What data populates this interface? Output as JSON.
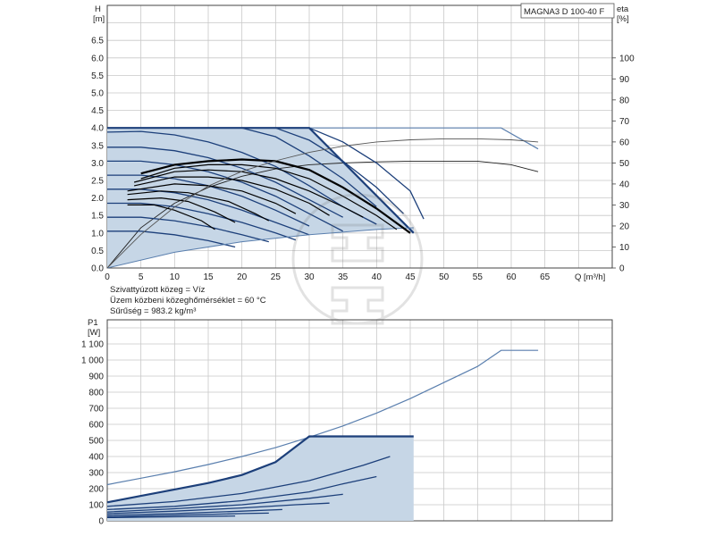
{
  "title_box": "MAGNA3 D 100-40 F",
  "info_lines": [
    "Szivattyúzott közeg = Víz",
    "Üzem közbeni közeghőmérséklet = 60 °C",
    "Sűrűség = 983.2 kg/m³"
  ],
  "colors": {
    "curve_dark": "#1c3f7a",
    "area_fill": "#c6d6e6",
    "curve_light": "#5a7fae",
    "eta_curve": "#000000",
    "grid": "#c8c8c8"
  },
  "chart_data": [
    {
      "type": "line",
      "name": "head",
      "x_label": "Q [m³/h]",
      "y_label_top": "H",
      "y_label_unit": "[m]",
      "y2_label_top": "eta",
      "y2_label_unit": "[%]",
      "x_ticks": [
        "0",
        "5",
        "10",
        "15",
        "20",
        "25",
        "30",
        "35",
        "40",
        "45",
        "50",
        "55",
        "60",
        "65"
      ],
      "y_ticks": [
        "0.0",
        "0.5",
        "1.0",
        "1.5",
        "2.0",
        "2.5",
        "3.0",
        "3.5",
        "4.0",
        "4.5",
        "5.0",
        "5.5",
        "6.0",
        "6.5"
      ],
      "y2_ticks": [
        "0",
        "10",
        "20",
        "30",
        "40",
        "50",
        "60",
        "70",
        "80",
        "90",
        "100"
      ],
      "xlim": [
        0,
        75
      ],
      "ylim": [
        0,
        7.5
      ],
      "y2lim": [
        0,
        125
      ],
      "max_curve": [
        [
          0,
          4.0
        ],
        [
          30,
          4.0
        ],
        [
          45.5,
          1.0
        ]
      ],
      "min_curve": [
        [
          0,
          0.0
        ],
        [
          10,
          0.45
        ],
        [
          20,
          0.75
        ],
        [
          30,
          0.95
        ],
        [
          40,
          1.1
        ],
        [
          45.5,
          1.15
        ]
      ],
      "speed_curves": [
        {
          "points": [
            [
              0,
              3.88
            ],
            [
              5,
              3.9
            ],
            [
              10,
              3.8
            ],
            [
              15,
              3.6
            ],
            [
              20,
              3.3
            ],
            [
              25,
              2.9
            ],
            [
              30,
              2.35
            ],
            [
              35,
              1.75
            ],
            [
              40,
              1.25
            ]
          ]
        },
        {
          "points": [
            [
              0,
              3.45
            ],
            [
              5,
              3.45
            ],
            [
              10,
              3.35
            ],
            [
              15,
              3.15
            ],
            [
              20,
              2.85
            ],
            [
              25,
              2.45
            ],
            [
              30,
              1.95
            ],
            [
              35,
              1.45
            ]
          ]
        },
        {
          "points": [
            [
              0,
              3.05
            ],
            [
              5,
              3.05
            ],
            [
              10,
              2.95
            ],
            [
              15,
              2.75
            ],
            [
              20,
              2.45
            ],
            [
              25,
              2.05
            ],
            [
              30,
              1.55
            ],
            [
              35,
              1.05
            ]
          ]
        },
        {
          "points": [
            [
              0,
              2.65
            ],
            [
              5,
              2.65
            ],
            [
              10,
              2.55
            ],
            [
              15,
              2.35
            ],
            [
              20,
              2.05
            ],
            [
              25,
              1.65
            ],
            [
              30,
              1.2
            ]
          ]
        },
        {
          "points": [
            [
              0,
              2.25
            ],
            [
              5,
              2.25
            ],
            [
              10,
              2.15
            ],
            [
              15,
              1.95
            ],
            [
              20,
              1.65
            ],
            [
              25,
              1.3
            ],
            [
              30,
              0.95
            ]
          ]
        },
        {
          "points": [
            [
              0,
              1.85
            ],
            [
              5,
              1.85
            ],
            [
              10,
              1.75
            ],
            [
              15,
              1.55
            ],
            [
              20,
              1.3
            ],
            [
              25,
              1.0
            ],
            [
              28,
              0.8
            ]
          ]
        },
        {
          "points": [
            [
              0,
              1.45
            ],
            [
              5,
              1.45
            ],
            [
              10,
              1.35
            ],
            [
              15,
              1.18
            ],
            [
              20,
              0.95
            ],
            [
              24,
              0.75
            ]
          ]
        },
        {
          "points": [
            [
              0,
              1.05
            ],
            [
              5,
              1.05
            ],
            [
              10,
              0.95
            ],
            [
              15,
              0.78
            ],
            [
              19,
              0.6
            ]
          ]
        }
      ],
      "mid_curves": [
        {
          "points": [
            [
              30,
              4.0
            ],
            [
              35,
              3.6
            ],
            [
              40,
              3.0
            ],
            [
              45,
              2.2
            ],
            [
              47,
              1.4
            ]
          ]
        },
        {
          "points": [
            [
              25,
              4.0
            ],
            [
              30,
              3.65
            ],
            [
              35,
              3.05
            ],
            [
              40,
              2.3
            ],
            [
              44,
              1.55
            ]
          ]
        },
        {
          "points": [
            [
              20,
              4.0
            ],
            [
              25,
              3.75
            ],
            [
              30,
              3.2
            ],
            [
              35,
              2.55
            ],
            [
              40,
              1.75
            ]
          ]
        }
      ],
      "constant_curves": [
        {
          "points": [
            [
              5,
              2.7
            ],
            [
              10,
              2.95
            ],
            [
              15,
              3.05
            ],
            [
              20,
              3.1
            ],
            [
              25,
              3.05
            ],
            [
              30,
              2.8
            ],
            [
              35,
              2.3
            ],
            [
              40,
              1.7
            ],
            [
              45,
              1.0
            ]
          ]
        },
        {
          "points": [
            [
              5,
              2.55
            ],
            [
              10,
              2.85
            ],
            [
              15,
              2.95
            ],
            [
              20,
              2.95
            ],
            [
              25,
              2.85
            ],
            [
              30,
              2.55
            ],
            [
              35,
              2.05
            ],
            [
              40,
              1.5
            ],
            [
              43,
              1.1
            ]
          ]
        },
        {
          "points": [
            [
              4,
              2.45
            ],
            [
              10,
              2.75
            ],
            [
              15,
              2.8
            ],
            [
              20,
              2.75
            ],
            [
              25,
              2.55
            ],
            [
              30,
              2.2
            ],
            [
              35,
              1.75
            ],
            [
              38,
              1.45
            ]
          ]
        },
        {
          "points": [
            [
              4,
              2.35
            ],
            [
              10,
              2.6
            ],
            [
              15,
              2.6
            ],
            [
              20,
              2.5
            ],
            [
              25,
              2.25
            ],
            [
              30,
              1.85
            ],
            [
              33,
              1.5
            ]
          ]
        },
        {
          "points": [
            [
              3,
              2.2
            ],
            [
              10,
              2.4
            ],
            [
              15,
              2.35
            ],
            [
              20,
              2.2
            ],
            [
              25,
              1.85
            ],
            [
              28,
              1.55
            ]
          ]
        },
        {
          "points": [
            [
              3,
              2.1
            ],
            [
              8,
              2.2
            ],
            [
              12,
              2.15
            ],
            [
              18,
              1.9
            ],
            [
              22,
              1.55
            ],
            [
              24,
              1.35
            ]
          ]
        },
        {
          "points": [
            [
              3,
              1.95
            ],
            [
              8,
              2.0
            ],
            [
              12,
              1.9
            ],
            [
              16,
              1.6
            ],
            [
              19,
              1.3
            ]
          ]
        },
        {
          "points": [
            [
              3,
              1.8
            ],
            [
              7,
              1.8
            ],
            [
              10,
              1.65
            ],
            [
              14,
              1.35
            ],
            [
              16,
              1.1
            ]
          ]
        }
      ],
      "eta_curve": [
        [
          0,
          0
        ],
        [
          5,
          16
        ],
        [
          10,
          29
        ],
        [
          15,
          39
        ],
        [
          20,
          46
        ],
        [
          25,
          51
        ],
        [
          30,
          55
        ],
        [
          35,
          58
        ],
        [
          40,
          60
        ],
        [
          45,
          61
        ],
        [
          50,
          61.5
        ],
        [
          55,
          61.5
        ],
        [
          60,
          61
        ],
        [
          64,
          60
        ]
      ],
      "far_curve": [
        [
          0,
          0
        ],
        [
          5,
          1.15
        ],
        [
          10,
          1.85
        ],
        [
          15,
          2.3
        ],
        [
          20,
          2.62
        ],
        [
          25,
          2.83
        ],
        [
          30,
          2.95
        ],
        [
          35,
          3.0
        ],
        [
          40,
          3.03
        ],
        [
          45,
          3.05
        ],
        [
          50,
          3.05
        ],
        [
          55,
          3.05
        ],
        [
          60,
          2.95
        ],
        [
          64,
          2.75
        ]
      ],
      "max_outline": [
        [
          30,
          4.0
        ],
        [
          58.5,
          4.0
        ],
        [
          64,
          3.4
        ]
      ]
    },
    {
      "type": "line",
      "name": "power",
      "y_label_top": "P1",
      "y_label_unit": "[W]",
      "x_ticks": [],
      "y_ticks": [
        "0",
        "100",
        "200",
        "300",
        "400",
        "500",
        "600",
        "700",
        "800",
        "900",
        "1 000",
        "1 100"
      ],
      "xlim": [
        0,
        75
      ],
      "ylim": [
        0,
        1250
      ],
      "max_power": [
        [
          0,
          115
        ],
        [
          5,
          155
        ],
        [
          10,
          195
        ],
        [
          15,
          235
        ],
        [
          20,
          285
        ],
        [
          25,
          365
        ],
        [
          30,
          525
        ],
        [
          45.5,
          525
        ]
      ],
      "power_curves": [
        {
          "points": [
            [
              0,
              90
            ],
            [
              10,
              120
            ],
            [
              20,
              170
            ],
            [
              30,
              250
            ],
            [
              38,
              345
            ],
            [
              42,
              400
            ]
          ]
        },
        {
          "points": [
            [
              0,
              70
            ],
            [
              10,
              90
            ],
            [
              20,
              125
            ],
            [
              30,
              180
            ],
            [
              35,
              230
            ],
            [
              40,
              275
            ]
          ]
        },
        {
          "points": [
            [
              0,
              55
            ],
            [
              10,
              75
            ],
            [
              20,
              100
            ],
            [
              30,
              140
            ],
            [
              35,
              165
            ]
          ]
        },
        {
          "points": [
            [
              0,
              45
            ],
            [
              10,
              60
            ],
            [
              20,
              80
            ],
            [
              28,
              100
            ],
            [
              33,
              110
            ]
          ]
        },
        {
          "points": [
            [
              0,
              35
            ],
            [
              10,
              45
            ],
            [
              20,
              60
            ],
            [
              26,
              70
            ]
          ]
        },
        {
          "points": [
            [
              0,
              25
            ],
            [
              10,
              35
            ],
            [
              20,
              45
            ],
            [
              24,
              48
            ]
          ]
        },
        {
          "points": [
            [
              0,
              20
            ],
            [
              10,
              25
            ],
            [
              19,
              30
            ]
          ]
        }
      ],
      "area_lower": [
        [
          0,
          0
        ],
        [
          10,
          0
        ],
        [
          20,
          0
        ],
        [
          30,
          0
        ],
        [
          45.5,
          0
        ]
      ],
      "outer_curve": [
        [
          0,
          225
        ],
        [
          5,
          265
        ],
        [
          10,
          305
        ],
        [
          15,
          350
        ],
        [
          20,
          400
        ],
        [
          25,
          455
        ],
        [
          30,
          520
        ],
        [
          35,
          590
        ],
        [
          40,
          670
        ],
        [
          45,
          760
        ],
        [
          50,
          860
        ],
        [
          55,
          960
        ],
        [
          58.5,
          1060
        ],
        [
          64,
          1060
        ]
      ]
    }
  ]
}
